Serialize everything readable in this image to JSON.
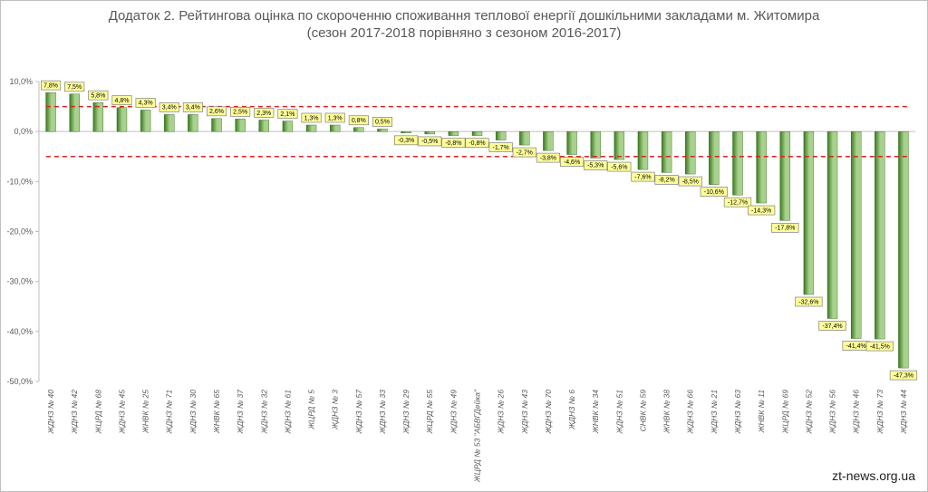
{
  "title_line1": "Додаток 2. Рейтингова оцінка по скороченню споживання теплової енергії дошкільними закладами м. Житомира",
  "title_line2": "(сезон 2017-2018 порівняно з сезоном 2016-2017)",
  "source": "zt-news.org.ua",
  "chart_data": {
    "type": "bar",
    "categories": [
      "ЖДНЗ № 40",
      "ЖДНЗ № 42",
      "ЖЦРД № 68",
      "ЖДНЗ № 45",
      "ЖНВК № 25",
      "ЖДНЗ № 71",
      "ЖДНЗ № 30",
      "ЖНВК № 65",
      "ЖДНЗ № 37",
      "ЖДНЗ № 32",
      "ЖДНЗ № 61",
      "ЖЦРД № 5",
      "ЖДНЗ № 3",
      "ЖДНЗ № 57",
      "ЖДНЗ № 33",
      "ЖДНЗ № 29",
      "ЖЦРД № 55",
      "ЖДНЗ № 49",
      "ЖЦРД № 53 \"АБВГДейка\"",
      "ЖДНЗ № 26",
      "ЖДНЗ № 43",
      "ЖДНЗ № 70",
      "ЖДНЗ № 6",
      "ЖНВК № 34",
      "ЖДНЗ № 51",
      "СНВК № 59",
      "ЖНВК № 38",
      "ЖДНЗ № 66",
      "ЖДНЗ № 21",
      "ЖДНЗ № 63",
      "ЖНВК № 11",
      "ЖЦРД № 69",
      "ЖДНЗ № 52",
      "ЖДНЗ № 56",
      "ЖДНЗ № 46",
      "ЖДНЗ № 73",
      "ЖДНЗ № 44"
    ],
    "values": [
      7.8,
      7.5,
      5.8,
      4.8,
      4.3,
      3.4,
      3.4,
      2.6,
      2.5,
      2.3,
      2.1,
      1.3,
      1.3,
      0.8,
      0.5,
      -0.3,
      -0.5,
      -0.8,
      -0.8,
      -1.7,
      -2.7,
      -3.8,
      -4.6,
      -5.3,
      -5.6,
      -7.6,
      -8.2,
      -8.5,
      -10.6,
      -12.7,
      -14.3,
      -17.8,
      -32.6,
      -37.4,
      -41.4,
      -41.5,
      -47.3
    ],
    "data_labels": [
      "7,8%",
      "7,5%",
      "5,8%",
      "4,8%",
      "4,3%",
      "3,4%",
      "3,4%",
      "2,6%",
      "2,5%",
      "2,3%",
      "2,1%",
      "1,3%",
      "1,3%",
      "0,8%",
      "0,5%",
      "-0,3%",
      "-0,5%",
      "-0,8%",
      "-0,8%",
      "-1,7%",
      "-2,7%",
      "-3,8%",
      "-4,6%",
      "-5,3%",
      "-5,6%",
      "-7,6%",
      "-8,2%",
      "-8,5%",
      "-10,6%",
      "-12,7%",
      "-14,3%",
      "-17,8%",
      "-32,6%",
      "-37,4%",
      "-41,4%",
      "-41,5%",
      "-47,3%"
    ],
    "ylim": [
      -50,
      10
    ],
    "yticks": [
      10,
      0,
      -10,
      -20,
      -30,
      -40,
      -50
    ],
    "ytick_labels": [
      "10,0%",
      "0,0%",
      "-10,0%",
      "-20,0%",
      "-30,0%",
      "-40,0%",
      "-50,0%"
    ],
    "reference_lines": [
      5,
      -5
    ],
    "reference_line_color": "#e02020",
    "bar_color_dark": "#3a7a1e",
    "bar_color_light": "#a9d18e",
    "grid": false
  }
}
